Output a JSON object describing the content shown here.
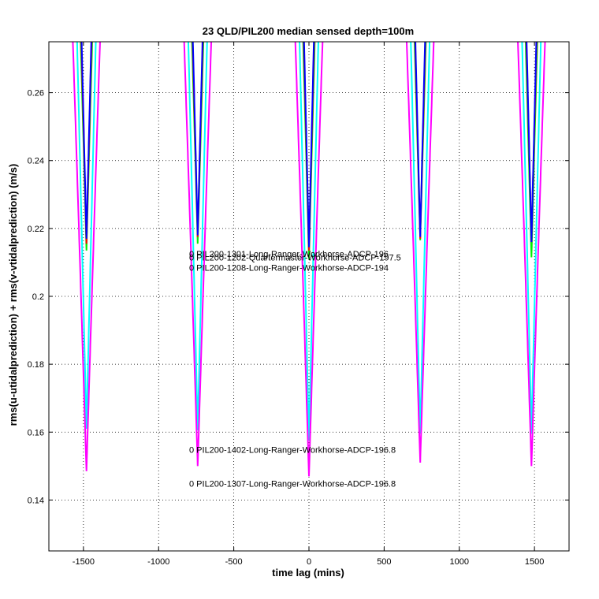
{
  "chart_data": {
    "type": "line",
    "title": "23 QLD/PIL200 median sensed depth=100m",
    "xlabel": "time lag (mins)",
    "ylabel": "rms(u-utidalprediction) + rms(v-vtidalprediction) (m/s)",
    "xlim": [
      -1730,
      1730
    ],
    "ylim": [
      0.125,
      0.275
    ],
    "xticks": [
      -1500,
      -1000,
      -500,
      0,
      500,
      1000,
      1500
    ],
    "xtick_labels": [
      "-1500",
      "-1000",
      "-500",
      "0",
      "500",
      "1000",
      "1500"
    ],
    "yticks": [
      0.14,
      0.16,
      0.18,
      0.2,
      0.22,
      0.24,
      0.26
    ],
    "ytick_labels": [
      "0.14",
      "0.16",
      "0.18",
      "0.2",
      "0.22",
      "0.24",
      "0.26"
    ],
    "grid": true,
    "period_mins": 745,
    "series": [
      {
        "name": "PIL200-1402-Long-Ranger-Workhorse-ADCP-196.8",
        "color": "#00ffff",
        "half_width": 118,
        "minima": [
          [
            -1480,
            0.161
          ],
          [
            -740,
            0.1605
          ],
          [
            0,
            0.1575
          ],
          [
            740,
            0.1595
          ],
          [
            1480,
            0.1595
          ]
        ]
      },
      {
        "name": "PIL200-1307-Long-Ranger-Workhorse-ADCP-196.8",
        "color": "#ff00ff",
        "half_width": 166,
        "minima": [
          [
            -1480,
            0.1485
          ],
          [
            -740,
            0.15
          ],
          [
            0,
            0.147
          ],
          [
            740,
            0.151
          ],
          [
            1480,
            0.15
          ]
        ]
      },
      {
        "name": "PIL200-1202-Quartermaster-Workhorse-ADCP-197.5",
        "color": "#00ee00",
        "half_width": 84,
        "minima": [
          [
            -1480,
            0.2135
          ],
          [
            -740,
            0.2155
          ],
          [
            0,
            0.211
          ],
          [
            740,
            0.2165
          ],
          [
            1480,
            0.2115
          ]
        ]
      },
      {
        "name": "PIL200-1208-Long-Ranger-Workhorse-ADCP-194",
        "color": "#ff0000",
        "half_width": 76,
        "minima": [
          [
            -1480,
            0.2155
          ],
          [
            -740,
            0.2175
          ],
          [
            0,
            0.2135
          ],
          [
            740,
            0.217
          ],
          [
            1480,
            0.216
          ]
        ]
      },
      {
        "name": "PIL200-1301-Long-Ranger-Workhorse-ADCP-196",
        "color": "#0000ff",
        "half_width": 72,
        "minima": [
          [
            -1480,
            0.217
          ],
          [
            -740,
            0.218
          ],
          [
            0,
            0.2145
          ],
          [
            740,
            0.2175
          ],
          [
            1480,
            0.216
          ]
        ]
      }
    ],
    "annotations": [
      {
        "text": "0 PIL200-1301-Long-Ranger-Workhorse-ADCP-196",
        "x": 0,
        "y": 0.2125
      },
      {
        "text": "0 PIL200-1202-Quartermaster-Workhorse-ADCP-197.5",
        "x": 0,
        "y": 0.2115
      },
      {
        "text": "0 PIL200-1208-Long-Ranger-Workhorse-ADCP-194",
        "x": 0,
        "y": 0.2085
      },
      {
        "text": "0 PIL200-1402-Long-Ranger-Workhorse-ADCP-196.8",
        "x": 0,
        "y": 0.1548
      },
      {
        "text": "0 PIL200-1307-Long-Ranger-Workhorse-ADCP-196.8",
        "x": 0,
        "y": 0.1448
      }
    ]
  }
}
